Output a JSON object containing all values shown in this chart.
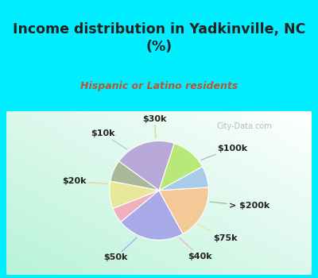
{
  "title": "Income distribution in Yadkinville, NC\n(%)",
  "subtitle": "Hispanic or Latino residents",
  "watermark": "City-Data.com",
  "labels": [
    "$100k",
    "> $200k",
    "$75k",
    "$40k",
    "$50k",
    "$20k",
    "$10k",
    "$30k"
  ],
  "sizes": [
    20,
    7,
    9,
    5,
    22,
    18,
    7,
    12
  ],
  "colors": [
    "#b8a8d8",
    "#a8b898",
    "#e8e89a",
    "#f0b0bc",
    "#a8aae8",
    "#f5c898",
    "#a8cce8",
    "#b8e878"
  ],
  "bg_cyan": "#00eeff",
  "title_color": "#222222",
  "subtitle_color": "#bb5533",
  "label_color": "#222222",
  "startangle": 72,
  "label_fontsize": 8,
  "title_fontsize": 12.5,
  "subtitle_fontsize": 9
}
